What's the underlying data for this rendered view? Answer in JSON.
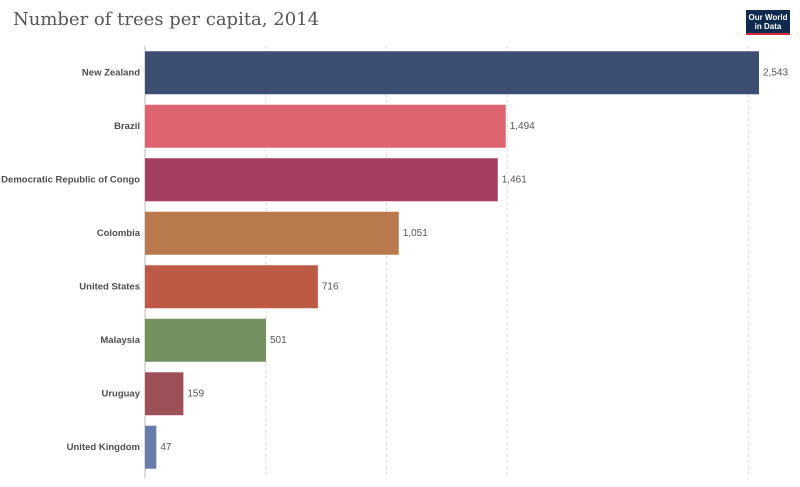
{
  "title": "Number of trees per capita, 2014",
  "logo": {
    "line1": "Our World",
    "line2": "in Data",
    "background": "#0f2a4e",
    "accent": "#d42b35"
  },
  "chart_data": {
    "type": "bar",
    "orientation": "horizontal",
    "title": "Number of trees per capita, 2014",
    "categories": [
      "New Zealand",
      "Brazil",
      "Democratic Republic of Congo",
      "Colombia",
      "United States",
      "Malaysia",
      "Uruguay",
      "United Kingdom"
    ],
    "values": [
      2543,
      1494,
      1461,
      1051,
      716,
      501,
      159,
      47
    ],
    "value_labels": [
      "2,543",
      "1,494",
      "1,461",
      "1,051",
      "716",
      "501",
      "159",
      "47"
    ],
    "colors": [
      "#3c4e72",
      "#dd6470",
      "#a43d62",
      "#b87a4c",
      "#bd5a46",
      "#72915f",
      "#9e5059",
      "#6a7ca8"
    ],
    "xlim": [
      0,
      2543
    ],
    "grid": true,
    "gridlines": [
      500,
      1000,
      1500,
      2500
    ]
  }
}
